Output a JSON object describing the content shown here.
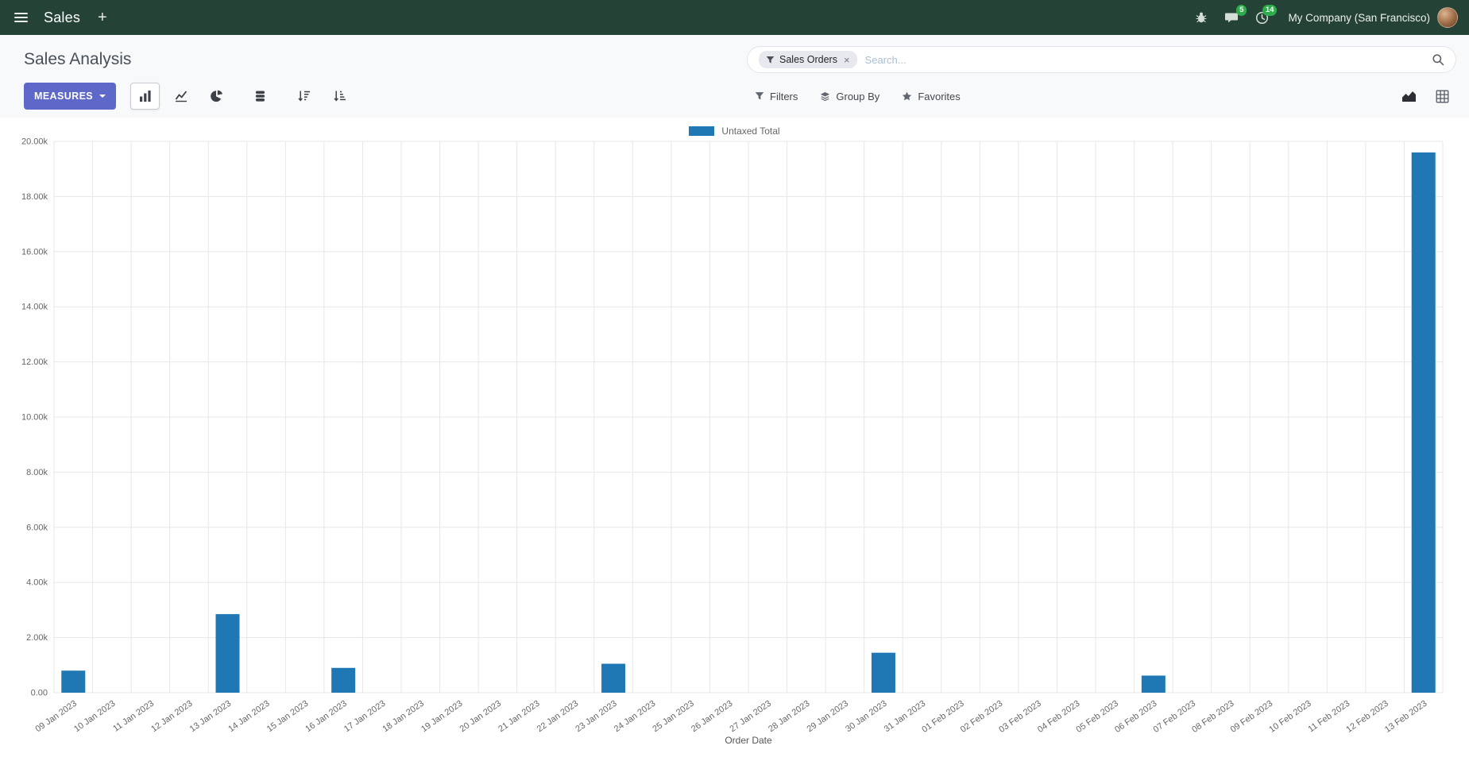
{
  "theme": {
    "navbar_bg": "#254237",
    "accent": "#5d68c8",
    "badge_green": "#2eac4b"
  },
  "icons": {
    "apps_menu": "hamburger",
    "add": "plus",
    "debug": "bug",
    "messages": "chat-bubble",
    "activities": "clock",
    "measures_caret": "chevron-down",
    "view_bar": "bar-chart",
    "view_line": "line-chart",
    "view_pie": "pie-chart",
    "stacked": "database-stack",
    "sort_desc": "sort-amount-desc",
    "sort_asc": "sort-amount-asc",
    "facet": "funnel",
    "filters": "funnel",
    "group_by": "layers",
    "favorites": "star",
    "search": "magnifier",
    "switch_graph": "area-chart",
    "switch_pivot": "table-grid"
  },
  "navbar": {
    "app_name": "Sales",
    "plus_label": "+",
    "messages_badge": "5",
    "activities_badge": "14",
    "company": "My Company (San Francisco)"
  },
  "control_panel": {
    "title": "Sales Analysis",
    "measures_label": "MEASURES",
    "search": {
      "facet": "Sales Orders",
      "facet_remove": "×",
      "placeholder": "Search..."
    },
    "filters_label": "Filters",
    "group_by_label": "Group By",
    "favorites_label": "Favorites"
  },
  "chart_data": {
    "type": "bar",
    "title": "",
    "xlabel": "Order Date",
    "ylabel": "",
    "ylim": [
      0,
      20000
    ],
    "ytick_step": 2000,
    "ytick_labels": [
      "0.00",
      "2.00k",
      "4.00k",
      "6.00k",
      "8.00k",
      "10.00k",
      "12.00k",
      "14.00k",
      "16.00k",
      "18.00k",
      "20.00k"
    ],
    "grid": true,
    "legend_position": "top-center",
    "categories": [
      "09 Jan 2023",
      "10 Jan 2023",
      "11 Jan 2023",
      "12 Jan 2023",
      "13 Jan 2023",
      "14 Jan 2023",
      "15 Jan 2023",
      "16 Jan 2023",
      "17 Jan 2023",
      "18 Jan 2023",
      "19 Jan 2023",
      "20 Jan 2023",
      "21 Jan 2023",
      "22 Jan 2023",
      "23 Jan 2023",
      "24 Jan 2023",
      "25 Jan 2023",
      "26 Jan 2023",
      "27 Jan 2023",
      "28 Jan 2023",
      "29 Jan 2023",
      "30 Jan 2023",
      "31 Jan 2023",
      "01 Feb 2023",
      "02 Feb 2023",
      "03 Feb 2023",
      "04 Feb 2023",
      "05 Feb 2023",
      "06 Feb 2023",
      "07 Feb 2023",
      "08 Feb 2023",
      "09 Feb 2023",
      "10 Feb 2023",
      "11 Feb 2023",
      "12 Feb 2023",
      "13 Feb 2023"
    ],
    "series": [
      {
        "name": "Untaxed Total",
        "color": "#1f77b4",
        "values": [
          800,
          0,
          0,
          0,
          2850,
          0,
          0,
          900,
          0,
          0,
          0,
          0,
          0,
          0,
          1050,
          0,
          0,
          0,
          0,
          0,
          0,
          1450,
          0,
          0,
          0,
          0,
          0,
          0,
          620,
          0,
          0,
          0,
          0,
          0,
          0,
          19600
        ]
      }
    ]
  }
}
